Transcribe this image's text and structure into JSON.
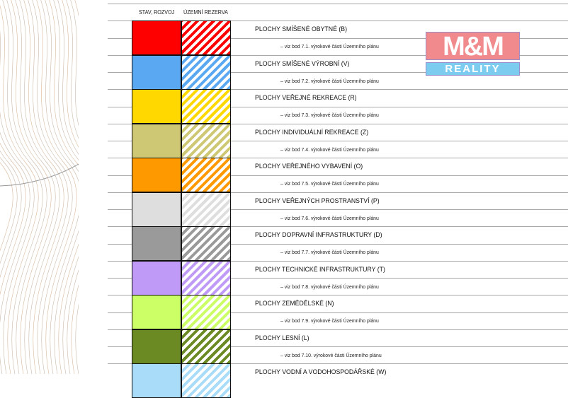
{
  "header": {
    "col_stav": "STAV, ROZVOJ",
    "col_rezerva": "ÚZEMNÍ REZERVA"
  },
  "logo": {
    "text": "M&M REALITY",
    "top": "M&M",
    "bottom": "REALITY"
  },
  "rows": [
    {
      "label": "PLOCHY SMÍŠENÉ OBYTNÉ   (B)",
      "ref": "– viz bod 7.1. výrokové části Územního plánu",
      "color": "#ff0000"
    },
    {
      "label": "PLOCHY SMÍŠENÉ VÝROBNÍ   (V)",
      "ref": "– viz bod 7.2. výrokové části Územního plánu",
      "color": "#5aa8f2"
    },
    {
      "label": "PLOCHY VEŘEJNÉ REKREACE   (R)",
      "ref": "– viz bod 7.3. výrokové části Územního plánu",
      "color": "#ffd800"
    },
    {
      "label": "PLOCHY INDIVIDUÁLNÍ REKREACE   (Z)",
      "ref": "– viz bod 7.4. výrokové části Územního plánu",
      "color": "#cec874"
    },
    {
      "label": "PLOCHY VEŘEJNÉHO VYBAVENÍ   (O)",
      "ref": "– viz bod 7.5. výrokové části Územního plánu",
      "color": "#ff9900"
    },
    {
      "label": "PLOCHY VEŘEJNÝCH PROSTRANSTVÍ   (P)",
      "ref": "– viz bod 7.6. výrokové části Územního plánu",
      "color": "#dedede"
    },
    {
      "label": "PLOCHY DOPRAVNÍ INFRASTRUKTURY   (D)",
      "ref": "– viz bod 7.7. výrokové části Územního plánu",
      "color": "#9a9a9a"
    },
    {
      "label": "PLOCHY TECHNICKÉ INFRASTRUKTURY   (T)",
      "ref": "– viz bod 7.8. výrokové části Územního plánu",
      "color": "#bf9bf7"
    },
    {
      "label": "PLOCHY ZEMĚDĚLSKÉ   (N)",
      "ref": "– viz bod 7.9. výrokové části Územního plánu",
      "color": "#ccff66"
    },
    {
      "label": "PLOCHY LESNÍ   (L)",
      "ref": "– viz bod 7.10. výrokové části Územního plánu",
      "color": "#6b8a23"
    },
    {
      "label": "PLOCHY VODNÍ A VODOHOSPODÁŘSKÉ   (W)",
      "ref": "",
      "color": "#a8dcf8"
    }
  ]
}
